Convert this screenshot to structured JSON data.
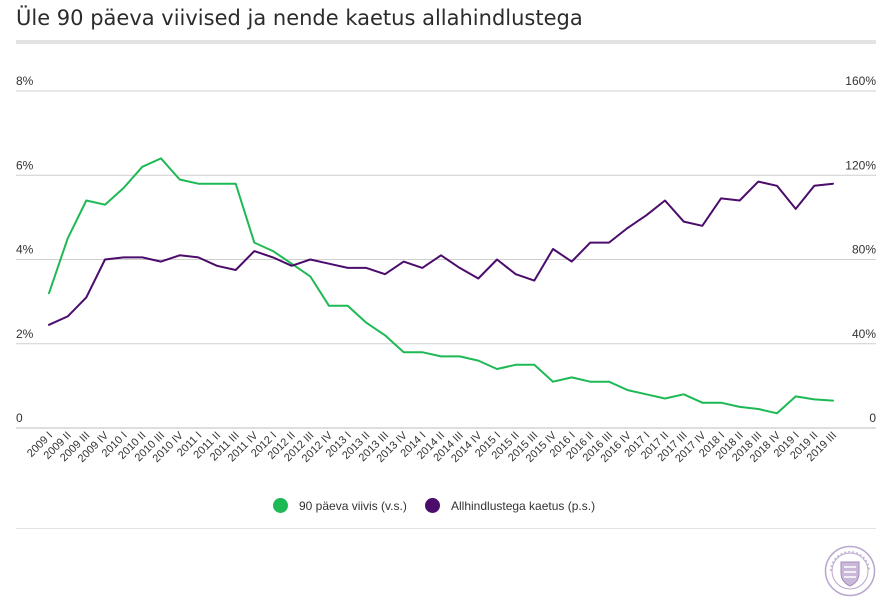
{
  "title": "Üle 90 päeva viivised ja nende kaetus allahindlustega",
  "legend": [
    {
      "label": "90 päeva viivis (v.s.)",
      "color": "#1db954"
    },
    {
      "label": "Allhindlustega kaetus (p.s.)",
      "color": "#4b0c6b"
    }
  ],
  "logo": {
    "name": "eesti-pank-seal",
    "text": "EESTI PANK"
  },
  "chart_data": {
    "type": "line",
    "categories": [
      "2009 I",
      "2009 II",
      "2009 III",
      "2009 IV",
      "2010 I",
      "2010 II",
      "2010 III",
      "2010 IV",
      "2011 I",
      "2011 II",
      "2011 III",
      "2011 IV",
      "2012 I",
      "2012 II",
      "2012 III",
      "2012 IV",
      "2013 I",
      "2013 II",
      "2013 III",
      "2013 IV",
      "2014 I",
      "2014 II",
      "2014 III",
      "2014 IV",
      "2015 I",
      "2015 II",
      "2015 III",
      "2015 IV",
      "2016 I",
      "2016 II",
      "2016 III",
      "2016 IV",
      "2017 I",
      "2017 II",
      "2017 III",
      "2017 IV",
      "2018 I",
      "2018 II",
      "2018 III",
      "2018 IV",
      "2019 I",
      "2019 II",
      "2019 III"
    ],
    "left_axis": {
      "ticks": [
        "8%",
        "6%",
        "4%",
        "2%",
        "0"
      ],
      "ylim": [
        0,
        8
      ]
    },
    "right_axis": {
      "ticks": [
        "160%",
        "120%",
        "80%",
        "40%",
        "0"
      ],
      "ylim": [
        0,
        160
      ]
    },
    "grid": true,
    "legend_position": "bottom",
    "series": [
      {
        "name": "90 päeva viivis (v.s.)",
        "axis": "left",
        "color": "#1db954",
        "values": [
          3.2,
          4.5,
          5.4,
          5.3,
          5.7,
          6.2,
          6.4,
          5.9,
          5.8,
          5.8,
          5.8,
          4.4,
          4.2,
          3.9,
          3.6,
          2.9,
          2.9,
          2.5,
          2.2,
          1.8,
          1.8,
          1.7,
          1.7,
          1.6,
          1.4,
          1.5,
          1.5,
          1.1,
          1.2,
          1.1,
          1.1,
          0.9,
          0.8,
          0.7,
          0.8,
          0.6,
          0.6,
          0.5,
          0.45,
          0.35,
          0.75,
          0.68,
          0.65
        ]
      },
      {
        "name": "Allhindlustega kaetus (p.s.)",
        "axis": "right",
        "color": "#4b0c6b",
        "values": [
          49,
          53,
          62,
          80,
          81,
          81,
          79,
          82,
          81,
          77,
          75,
          84,
          81,
          77,
          80,
          78,
          76,
          76,
          73,
          79,
          76,
          82,
          76,
          71,
          80,
          73,
          70,
          85,
          79,
          88,
          88,
          95,
          101,
          108,
          98,
          96,
          109,
          108,
          117,
          115,
          104,
          115,
          116
        ]
      }
    ]
  }
}
